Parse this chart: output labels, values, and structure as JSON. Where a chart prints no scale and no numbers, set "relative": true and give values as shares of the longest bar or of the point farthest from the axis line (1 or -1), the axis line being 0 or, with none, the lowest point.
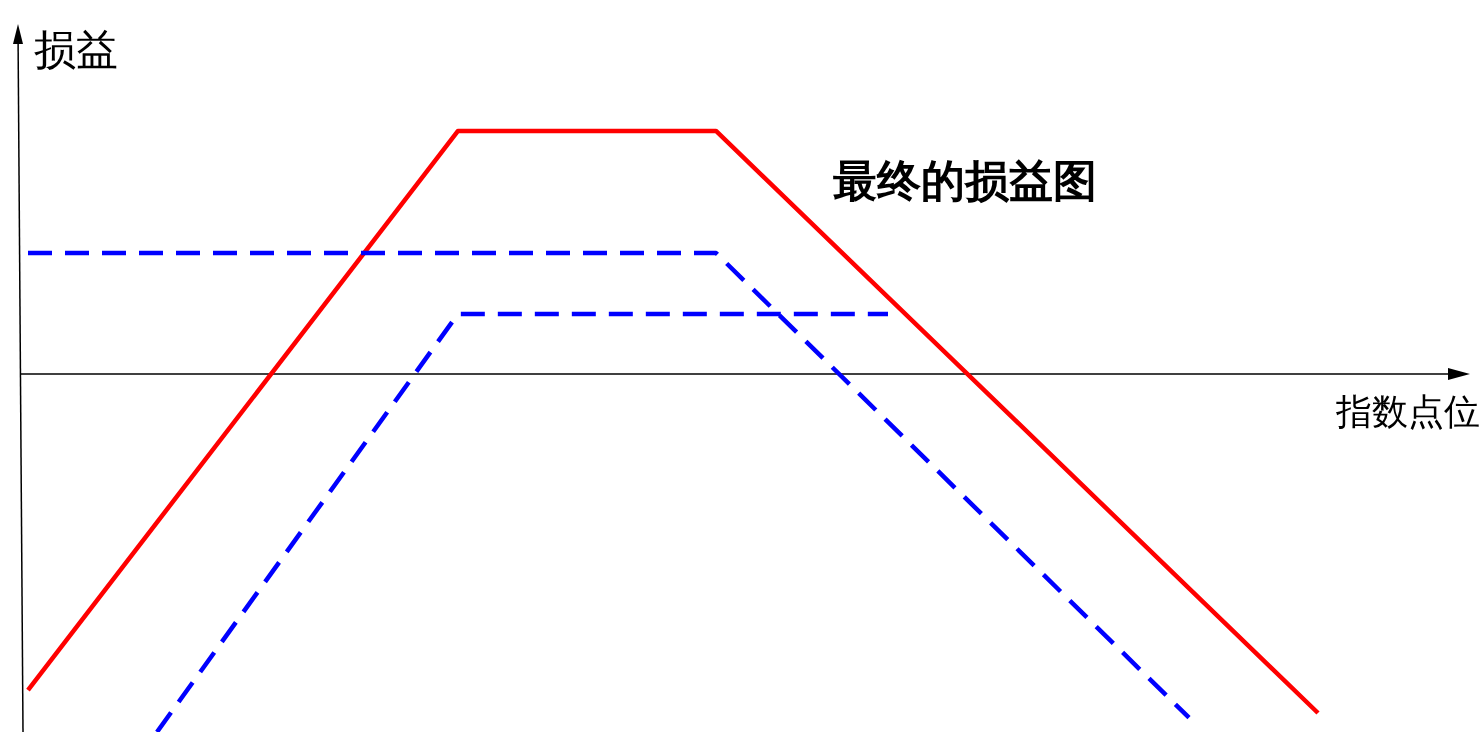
{
  "chart_data": {
    "type": "line",
    "relative": true,
    "xlabel": "指数点位",
    "ylabel": "损益",
    "annotations": [
      "最终的损益图"
    ],
    "categories": [
      null,
      null,
      null,
      null,
      null,
      null,
      null,
      null,
      null,
      null,
      null,
      null,
      null,
      null,
      null,
      null,
      null,
      null,
      null,
      null,
      null,
      null,
      null,
      null,
      null,
      null,
      null,
      null,
      null,
      null,
      null
    ],
    "series": [
      {
        "color": "#ff0000",
        "line_style": "solid",
        "values": [
          -0.883,
          null,
          null,
          null,
          null,
          null,
          null,
          null,
          null,
          null,
          0.679,
          null,
          null,
          null,
          null,
          null,
          0.679,
          null,
          null,
          null,
          null,
          null,
          null,
          null,
          null,
          null,
          null,
          null,
          null,
          null,
          -0.947
        ]
      },
      {
        "color": "#0000ff",
        "line_style": "dashed",
        "values": [
          0.338,
          null,
          null,
          null,
          null,
          null,
          null,
          null,
          null,
          null,
          null,
          null,
          null,
          null,
          null,
          null,
          0.338,
          null,
          null,
          null,
          null,
          null,
          null,
          null,
          null,
          null,
          null,
          -0.96,
          null,
          null,
          null
        ]
      },
      {
        "color": "#0000ff",
        "line_style": "dashed",
        "values": [
          null,
          null,
          null,
          -1,
          null,
          null,
          null,
          null,
          null,
          null,
          0.168,
          null,
          null,
          null,
          null,
          null,
          null,
          null,
          null,
          null,
          0.168,
          null,
          null,
          null,
          null,
          null,
          null,
          null,
          null,
          null,
          null
        ]
      }
    ]
  }
}
